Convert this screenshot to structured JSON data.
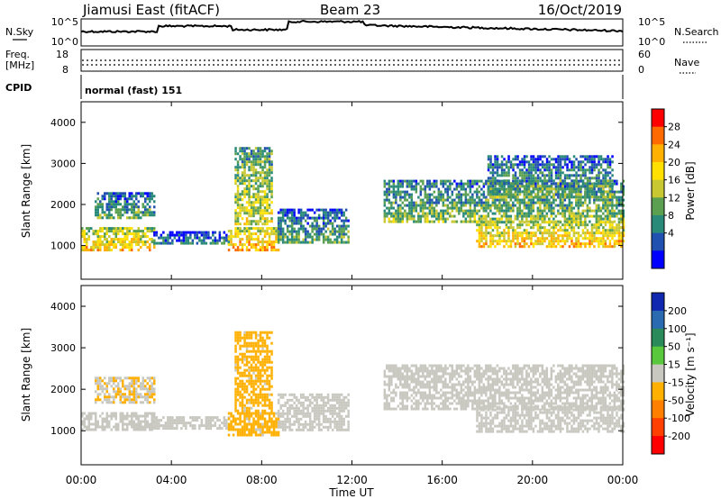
{
  "header": {
    "station": "Jiamusi East (fitACF)",
    "beam": "Beam 23",
    "date": "16/Oct/2019"
  },
  "noise_panel": {
    "left_label": "N.Sky",
    "left_ticks": [
      "10^5",
      "10^0"
    ],
    "right_label": "N.Search",
    "right_ticks": [
      "10^5",
      "10^0"
    ]
  },
  "freq_panel": {
    "left_label_1": "Freq.",
    "left_label_2": "[MHz]",
    "left_ticks": [
      "18",
      "8"
    ],
    "right_label": "Nave",
    "right_ticks": [
      "60",
      "0"
    ]
  },
  "cpid": {
    "label": "CPID",
    "value": "normal (fast) 151"
  },
  "x_axis": {
    "label": "Time UT",
    "ticks": [
      "00:00",
      "04:00",
      "08:00",
      "12:00",
      "16:00",
      "20:00",
      "00:00"
    ]
  },
  "power_scale": {
    "label": "Power [dB]",
    "ticks": [
      "28",
      "24",
      "20",
      "16",
      "12",
      "8",
      "4"
    ],
    "colors": [
      "#ff0000",
      "#ff6a00",
      "#ffb000",
      "#ffe000",
      "#c8c832",
      "#5aa050",
      "#2a8a7a",
      "#2050b0",
      "#0000ff"
    ]
  },
  "velocity_scale": {
    "label": "Velocity [m s⁻¹]",
    "ticks": [
      "200",
      "100",
      "50",
      "15",
      "-15",
      "-50",
      "-100",
      "-200"
    ],
    "colors": [
      "#1028b0",
      "#2a6ab0",
      "#2a8a5a",
      "#5ac83c",
      "#c8c8c0",
      "#ffb000",
      "#ff8000",
      "#ff4000",
      "#ff0000"
    ]
  },
  "chart_data": [
    {
      "type": "heatmap",
      "title": "Power",
      "xlabel": "Time UT",
      "ylabel": "Slant Range [km]",
      "xlim": [
        0,
        24
      ],
      "ylim": [
        180,
        4500
      ],
      "yticks": [
        1000,
        2000,
        3000,
        4000
      ],
      "colorbar": {
        "label": "Power [dB]",
        "range": [
          0,
          32
        ]
      },
      "regions": [
        {
          "t": [
            0.0,
            3.2
          ],
          "range": [
            900,
            1450
          ],
          "value": 18
        },
        {
          "t": [
            0.6,
            3.2
          ],
          "range": [
            1700,
            2300
          ],
          "value": 9
        },
        {
          "t": [
            3.2,
            6.5
          ],
          "range": [
            1050,
            1350
          ],
          "value": 6
        },
        {
          "t": [
            6.5,
            8.7
          ],
          "range": [
            900,
            1450
          ],
          "value": 20
        },
        {
          "t": [
            6.8,
            8.4
          ],
          "range": [
            1500,
            3400
          ],
          "value": 14
        },
        {
          "t": [
            8.7,
            11.8
          ],
          "range": [
            1050,
            1900
          ],
          "value": 9
        },
        {
          "t": [
            13.4,
            24.0
          ],
          "range": [
            1550,
            2600
          ],
          "value": 11
        },
        {
          "t": [
            17.5,
            24.0
          ],
          "range": [
            950,
            1600
          ],
          "value": 19
        },
        {
          "t": [
            18.0,
            23.5
          ],
          "range": [
            2200,
            3200
          ],
          "value": 9
        }
      ]
    },
    {
      "type": "heatmap",
      "title": "Velocity",
      "xlabel": "Time UT",
      "ylabel": "Slant Range [km]",
      "xlim": [
        0,
        24
      ],
      "ylim": [
        180,
        4500
      ],
      "yticks": [
        1000,
        2000,
        3000,
        4000
      ],
      "colorbar": {
        "label": "Velocity [m s⁻¹]",
        "range": [
          -200,
          200
        ]
      },
      "regions": [
        {
          "t": [
            0.0,
            3.2
          ],
          "range": [
            1000,
            1450
          ],
          "value": 0
        },
        {
          "t": [
            0.6,
            3.2
          ],
          "range": [
            1700,
            2300
          ],
          "value": -20
        },
        {
          "t": [
            3.2,
            6.5
          ],
          "range": [
            1050,
            1350
          ],
          "value": 0
        },
        {
          "t": [
            6.5,
            8.7
          ],
          "range": [
            900,
            1450
          ],
          "value": -40
        },
        {
          "t": [
            6.8,
            8.4
          ],
          "range": [
            1500,
            3400
          ],
          "value": -40
        },
        {
          "t": [
            8.7,
            11.8
          ],
          "range": [
            1050,
            1900
          ],
          "value": 0
        },
        {
          "t": [
            13.4,
            24.0
          ],
          "range": [
            1550,
            2600
          ],
          "value": 0
        },
        {
          "t": [
            17.5,
            24.0
          ],
          "range": [
            950,
            1600
          ],
          "value": 0
        }
      ]
    }
  ]
}
